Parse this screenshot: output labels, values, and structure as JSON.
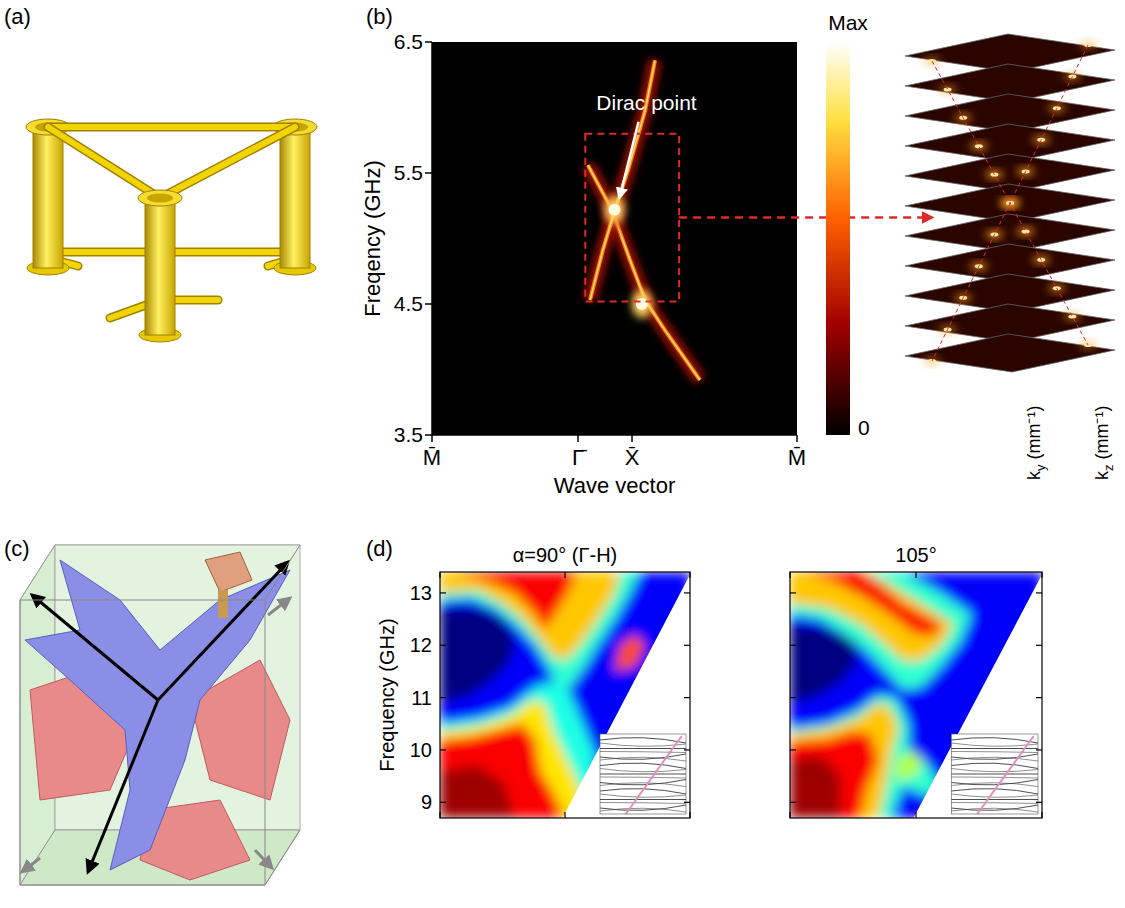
{
  "panel_labels": [
    "(a)",
    "(b)",
    "(c)",
    "(d)"
  ],
  "chart_data": [
    {
      "type": "band_map",
      "xlabel": "Wave vector",
      "ylabel": "Freqency (GHz)",
      "xlim": [
        0,
        1
      ],
      "xticks": [
        {
          "value": 0,
          "label": "M̄"
        },
        {
          "value": 0.4,
          "label": "Γ̄"
        },
        {
          "value": 0.548,
          "label": "X̄"
        },
        {
          "value": 1,
          "label": "M̄"
        }
      ],
      "ylim": [
        3.5,
        6.5
      ],
      "yticks": [
        3.5,
        4.5,
        5.5,
        6.5
      ],
      "series": [
        {
          "x": [
            0.427,
            0.493,
            0.542,
            0.584,
            0.638,
            0.734
          ],
          "values": [
            5.56,
            5.22,
            4.84,
            4.53,
            4.3,
            3.92
          ]
        },
        {
          "x": [
            0.433,
            0.468,
            0.501,
            0.537,
            0.584,
            0.611
          ],
          "values": [
            4.53,
            4.91,
            5.22,
            5.52,
            5.98,
            6.36
          ]
        }
      ],
      "hot_spots": {
        "x": [
          0.5,
          0.575
        ],
        "values": [
          5.22,
          4.5
        ]
      },
      "annotation": {
        "text": "Dirac point",
        "x": 0.5,
        "y": 5.22
      },
      "highlight": {
        "xlim": [
          0.42,
          0.677
        ],
        "ylim": [
          4.52,
          5.8
        ]
      },
      "colorbar": {
        "range": [
          0,
          1
        ],
        "ticks": [
          {
            "value": 0,
            "label": "0"
          },
          {
            "value": 1,
            "label": "Max"
          }
        ]
      }
    },
    {
      "type": "band_map_regions",
      "title": "α=90° (Γ-H)",
      "ylabel": "Frequency (GHz)",
      "xlim": [
        0,
        1
      ],
      "xticks": [
        0,
        0.5,
        1
      ],
      "ylim": [
        8.7,
        13.4
      ],
      "yticks": [
        9,
        10,
        11,
        12,
        13
      ],
      "tick_labels": "y",
      "background": 0.12,
      "light_line": {
        "x": [
          0.49,
          1
        ],
        "values": [
          8.7,
          13.35
        ]
      },
      "regions": [
        {
          "intensity": 0.4,
          "points": [
            [
              0,
              8.7
            ],
            [
              0,
              10.5
            ],
            [
              0.15,
              10.6
            ],
            [
              0.28,
              10.8
            ],
            [
              0.38,
              11.2
            ],
            [
              0.44,
              11.3
            ],
            [
              0.5,
              11.0
            ],
            [
              0.55,
              10.4
            ],
            [
              0.6,
              9.8
            ],
            [
              0.66,
              9.2
            ],
            [
              0.7,
              8.7
            ]
          ]
        },
        {
          "intensity": 0.65,
          "points": [
            [
              0,
              8.7
            ],
            [
              0,
              10.35
            ],
            [
              0.15,
              10.45
            ],
            [
              0.28,
              10.65
            ],
            [
              0.37,
              10.95
            ],
            [
              0.42,
              10.9
            ],
            [
              0.45,
              10.4
            ],
            [
              0.5,
              9.9
            ],
            [
              0.55,
              9.4
            ],
            [
              0.6,
              8.7
            ]
          ]
        },
        {
          "intensity": 0.88,
          "points": [
            [
              0,
              8.7
            ],
            [
              0,
              10.2
            ],
            [
              0.12,
              10.25
            ],
            [
              0.25,
              10.4
            ],
            [
              0.33,
              10.5
            ],
            [
              0.38,
              10.2
            ],
            [
              0.4,
              9.6
            ],
            [
              0.45,
              9.2
            ],
            [
              0.5,
              8.7
            ]
          ]
        },
        {
          "intensity": 0.97,
          "points": [
            [
              0,
              8.7
            ],
            [
              0,
              9.6
            ],
            [
              0.15,
              9.7
            ],
            [
              0.25,
              9.4
            ],
            [
              0.3,
              8.7
            ]
          ]
        },
        {
          "intensity": 0.0,
          "points": [
            [
              0,
              10.9
            ],
            [
              0.1,
              11.0
            ],
            [
              0.2,
              11.3
            ],
            [
              0.28,
              11.7
            ],
            [
              0.3,
              12.1
            ],
            [
              0.25,
              12.5
            ],
            [
              0.15,
              12.7
            ],
            [
              0,
              12.7
            ]
          ]
        },
        {
          "intensity": 0.42,
          "points": [
            [
              0,
              13.4
            ],
            [
              0,
              12.85
            ],
            [
              0.12,
              12.9
            ],
            [
              0.22,
              12.7
            ],
            [
              0.3,
              12.4
            ],
            [
              0.38,
              12.0
            ],
            [
              0.43,
              11.6
            ],
            [
              0.47,
              11.2
            ],
            [
              0.52,
              11.2
            ],
            [
              0.58,
              11.6
            ],
            [
              0.63,
              12.0
            ],
            [
              0.7,
              12.5
            ],
            [
              0.76,
              13.0
            ],
            [
              0.8,
              13.4
            ]
          ]
        },
        {
          "intensity": 0.68,
          "points": [
            [
              0,
              13.4
            ],
            [
              0,
              13.0
            ],
            [
              0.15,
              13.05
            ],
            [
              0.25,
              12.8
            ],
            [
              0.33,
              12.5
            ],
            [
              0.4,
              12.1
            ],
            [
              0.45,
              11.8
            ],
            [
              0.5,
              11.7
            ],
            [
              0.56,
              12.0
            ],
            [
              0.62,
              12.4
            ],
            [
              0.7,
              13.0
            ],
            [
              0.72,
              13.4
            ]
          ]
        },
        {
          "intensity": 0.88,
          "points": [
            [
              0.05,
              13.4
            ],
            [
              0.2,
              13.2
            ],
            [
              0.3,
              13.0
            ],
            [
              0.38,
              12.6
            ],
            [
              0.42,
              12.3
            ],
            [
              0.46,
              12.6
            ],
            [
              0.5,
              12.9
            ],
            [
              0.55,
              13.4
            ]
          ]
        },
        {
          "intensity": 0.8,
          "points": [
            [
              0.7,
              11.5
            ],
            [
              0.78,
              11.6
            ],
            [
              0.82,
              12.0
            ],
            [
              0.78,
              12.2
            ],
            [
              0.72,
              12.0
            ]
          ]
        },
        {
          "intensity": 0.4,
          "points": [
            [
              0.45,
              11.3
            ],
            [
              0.5,
              11.3
            ],
            [
              0.58,
              10.4
            ],
            [
              0.63,
              9.8
            ],
            [
              0.6,
              9.7
            ],
            [
              0.52,
              10.5
            ]
          ]
        }
      ]
    },
    {
      "type": "band_map_regions",
      "title": "105°",
      "xlim": [
        0,
        1
      ],
      "xticks": [
        0,
        0.5,
        1
      ],
      "ylim": [
        8.7,
        13.4
      ],
      "yticks": [
        9,
        10,
        11,
        12,
        13
      ],
      "tick_labels": false,
      "background": 0.12,
      "light_line": {
        "x": [
          0.49,
          1
        ],
        "values": [
          8.7,
          13.35
        ]
      },
      "regions": [
        {
          "intensity": 0.42,
          "points": [
            [
              0,
              8.7
            ],
            [
              0,
              10.4
            ],
            [
              0.15,
              10.5
            ],
            [
              0.27,
              10.75
            ],
            [
              0.35,
              11.05
            ],
            [
              0.42,
              11.0
            ],
            [
              0.47,
              10.5
            ],
            [
              0.47,
              10.0
            ],
            [
              0.55,
              9.7
            ],
            [
              0.6,
              9.3
            ],
            [
              0.55,
              9.1
            ],
            [
              0.45,
              9.3
            ],
            [
              0.4,
              8.7
            ]
          ]
        },
        {
          "intensity": 0.68,
          "points": [
            [
              0,
              8.7
            ],
            [
              0,
              10.3
            ],
            [
              0.15,
              10.4
            ],
            [
              0.27,
              10.6
            ],
            [
              0.35,
              10.9
            ],
            [
              0.4,
              10.8
            ],
            [
              0.43,
              10.4
            ],
            [
              0.4,
              9.9
            ],
            [
              0.38,
              9.3
            ],
            [
              0.35,
              8.7
            ]
          ]
        },
        {
          "intensity": 0.88,
          "points": [
            [
              0,
              8.7
            ],
            [
              0,
              10.15
            ],
            [
              0.15,
              10.2
            ],
            [
              0.25,
              10.35
            ],
            [
              0.32,
              10.3
            ],
            [
              0.35,
              9.8
            ],
            [
              0.3,
              9.2
            ],
            [
              0.28,
              8.7
            ]
          ]
        },
        {
          "intensity": 0.97,
          "points": [
            [
              0,
              8.7
            ],
            [
              0,
              9.8
            ],
            [
              0.12,
              9.9
            ],
            [
              0.2,
              9.5
            ],
            [
              0.2,
              8.7
            ]
          ]
        },
        {
          "intensity": 0.0,
          "points": [
            [
              0,
              10.9
            ],
            [
              0.1,
              11.0
            ],
            [
              0.2,
              11.3
            ],
            [
              0.27,
              11.7
            ],
            [
              0.25,
              12.1
            ],
            [
              0.15,
              12.3
            ],
            [
              0,
              12.4
            ]
          ]
        },
        {
          "intensity": 0.42,
          "points": [
            [
              0,
              13.4
            ],
            [
              0,
              12.6
            ],
            [
              0.12,
              12.5
            ],
            [
              0.22,
              12.2
            ],
            [
              0.3,
              11.9
            ],
            [
              0.38,
              11.5
            ],
            [
              0.45,
              11.15
            ],
            [
              0.52,
              11.2
            ],
            [
              0.6,
              11.6
            ],
            [
              0.68,
              12.1
            ],
            [
              0.72,
              12.6
            ],
            [
              0.6,
              13.0
            ],
            [
              0.45,
              13.4
            ]
          ]
        },
        {
          "intensity": 0.68,
          "points": [
            [
              0,
              13.4
            ],
            [
              0,
              12.8
            ],
            [
              0.15,
              12.7
            ],
            [
              0.28,
              12.4
            ],
            [
              0.38,
              12.0
            ],
            [
              0.45,
              11.7
            ],
            [
              0.52,
              11.7
            ],
            [
              0.6,
              12.0
            ],
            [
              0.65,
              12.4
            ],
            [
              0.52,
              12.8
            ],
            [
              0.38,
              13.2
            ],
            [
              0.3,
              13.4
            ]
          ]
        },
        {
          "intensity": 0.88,
          "points": [
            [
              0.05,
              13.4
            ],
            [
              0.18,
              13.2
            ],
            [
              0.3,
              12.9
            ],
            [
              0.42,
              12.5
            ],
            [
              0.5,
              12.2
            ],
            [
              0.58,
              12.2
            ],
            [
              0.6,
              12.4
            ],
            [
              0.45,
              12.8
            ],
            [
              0.35,
              13.2
            ],
            [
              0.28,
              13.4
            ]
          ]
        },
        {
          "intensity": 0.55,
          "points": [
            [
              0.42,
              9.4
            ],
            [
              0.5,
              9.5
            ],
            [
              0.53,
              9.8
            ],
            [
              0.48,
              10.0
            ],
            [
              0.42,
              9.8
            ]
          ]
        }
      ]
    }
  ],
  "inset": {
    "ylabel": {
      "symbol": "k",
      "subscript": "y",
      "unit": "(mm⁻¹)"
    },
    "xlabel": {
      "symbol": "k",
      "subscript": "z",
      "unit": "(mm⁻¹)"
    }
  }
}
